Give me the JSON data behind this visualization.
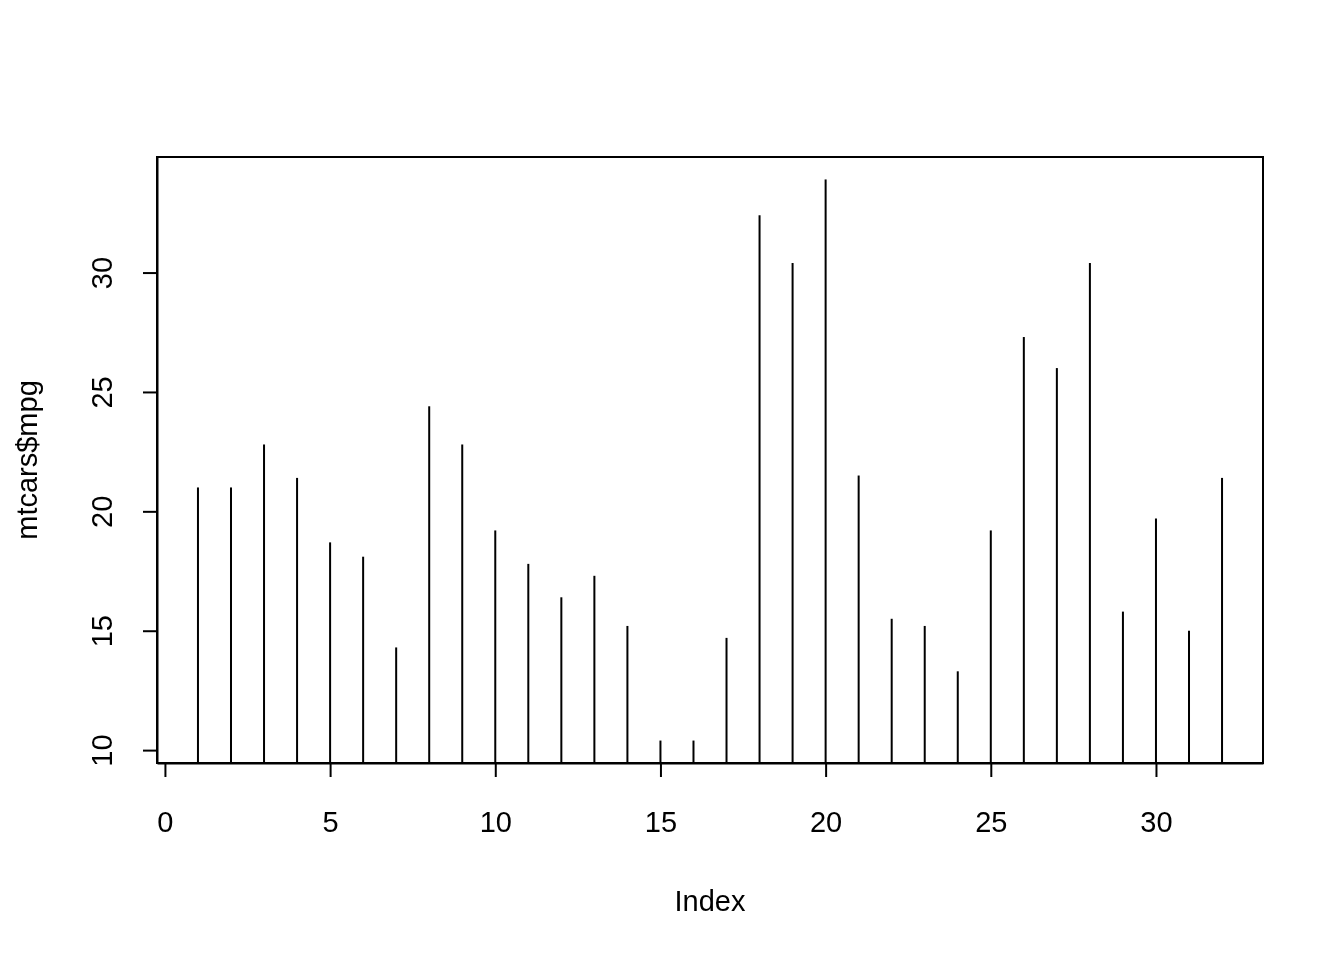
{
  "chart_data": {
    "type": "bar",
    "x": [
      1,
      2,
      3,
      4,
      5,
      6,
      7,
      8,
      9,
      10,
      11,
      12,
      13,
      14,
      15,
      16,
      17,
      18,
      19,
      20,
      21,
      22,
      23,
      24,
      25,
      26,
      27,
      28,
      29,
      30,
      31,
      32
    ],
    "values": [
      21.0,
      21.0,
      22.8,
      21.4,
      18.7,
      18.1,
      14.3,
      24.4,
      22.8,
      19.2,
      17.8,
      16.4,
      17.3,
      15.2,
      10.4,
      10.4,
      14.7,
      32.4,
      30.4,
      33.9,
      21.5,
      15.5,
      15.2,
      13.3,
      19.2,
      27.3,
      26.0,
      30.4,
      15.8,
      19.7,
      15.0,
      21.4
    ],
    "color": "#000000",
    "xlabel": "Index",
    "ylabel": "mtcars$mpg",
    "xlim": [
      -0.24,
      33.24
    ],
    "ylim": [
      9.46,
      34.84
    ],
    "xticks": [
      0,
      5,
      10,
      15,
      20,
      25,
      30
    ],
    "yticks": [
      10,
      15,
      20,
      25,
      30
    ]
  }
}
